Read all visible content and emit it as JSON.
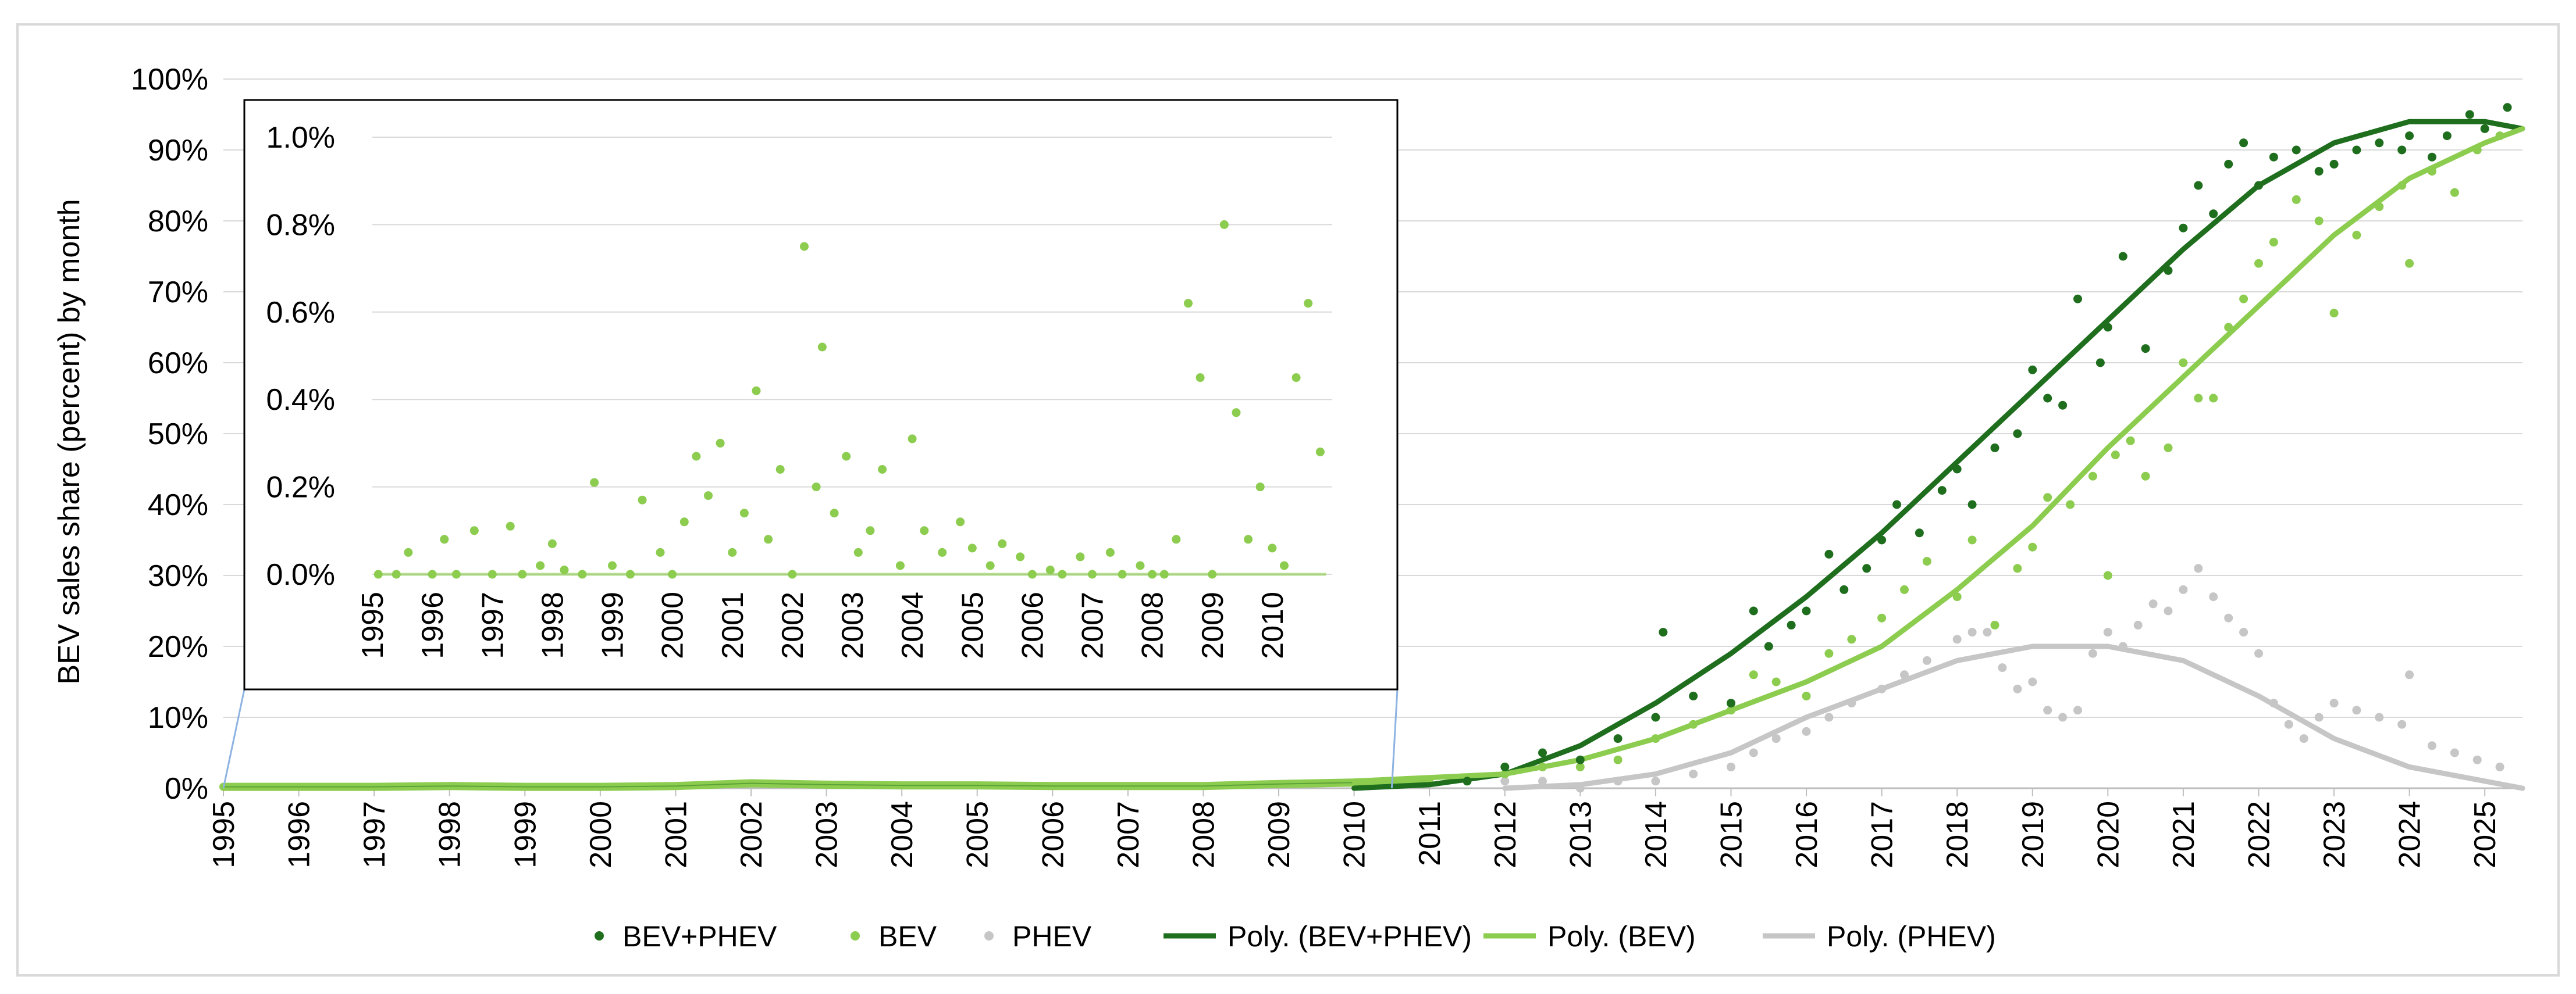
{
  "chart_data": [
    {
      "type": "scatter",
      "ylabel": "BEV sales share (percent) by month",
      "ylim": [
        0,
        100
      ],
      "yticks": [
        "0%",
        "10%",
        "20%",
        "30%",
        "40%",
        "50%",
        "60%",
        "70%",
        "80%",
        "90%",
        "100%"
      ],
      "xlim": [
        1995,
        2025.5
      ],
      "xticks": [
        "1995",
        "1996",
        "1997",
        "1998",
        "1999",
        "2000",
        "2001",
        "2002",
        "2003",
        "2004",
        "2005",
        "2006",
        "2007",
        "2008",
        "2009",
        "2010",
        "2011",
        "2012",
        "2013",
        "2014",
        "2015",
        "2016",
        "2017",
        "2018",
        "2019",
        "2020",
        "2021",
        "2022",
        "2023",
        "2024",
        "2025"
      ],
      "grid": true,
      "legend_position": "bottom",
      "legend": [
        {
          "label": "BEV+PHEV",
          "kind": "marker",
          "color": "#1e6e1e"
        },
        {
          "label": "BEV",
          "kind": "marker",
          "color": "#8ccc4e"
        },
        {
          "label": "PHEV",
          "kind": "marker",
          "color": "#c6c6c6"
        },
        {
          "label": "Poly. (BEV+PHEV)",
          "kind": "line",
          "color": "#1e6e1e"
        },
        {
          "label": "Poly. (BEV)",
          "kind": "line",
          "color": "#8ccc4e"
        },
        {
          "label": "Poly. (PHEV)",
          "kind": "line",
          "color": "#c6c6c6"
        }
      ],
      "series": [
        {
          "name": "BEV+PHEV",
          "color": "#1e6e1e",
          "x": [
            2011.5,
            2012.0,
            2012.5,
            2013.0,
            2013.5,
            2014.0,
            2014.1,
            2014.5,
            2015.0,
            2015.3,
            2015.5,
            2015.8,
            2016.0,
            2016.3,
            2016.5,
            2016.8,
            2017.0,
            2017.2,
            2017.5,
            2017.8,
            2018.0,
            2018.2,
            2018.5,
            2018.8,
            2019.0,
            2019.2,
            2019.4,
            2019.6,
            2019.9,
            2020.0,
            2020.2,
            2020.5,
            2020.8,
            2021.0,
            2021.2,
            2021.4,
            2021.6,
            2021.8,
            2022.0,
            2022.2,
            2022.5,
            2022.8,
            2023.0,
            2023.3,
            2023.6,
            2023.9,
            2024.0,
            2024.3,
            2024.5,
            2024.8,
            2025.0,
            2025.3
          ],
          "y": [
            1,
            3,
            5,
            4,
            7,
            10,
            22,
            13,
            12,
            25,
            20,
            23,
            25,
            33,
            28,
            31,
            35,
            40,
            36,
            42,
            45,
            40,
            48,
            50,
            59,
            55,
            54,
            69,
            60,
            65,
            75,
            62,
            73,
            79,
            85,
            81,
            88,
            91,
            85,
            89,
            90,
            87,
            88,
            90,
            91,
            90,
            92,
            89,
            92,
            95,
            93,
            96
          ]
        },
        {
          "name": "BEV",
          "color": "#8ccc4e",
          "x": [
            2011.5,
            2012.0,
            2012.5,
            2013.0,
            2013.5,
            2014.0,
            2014.5,
            2015.0,
            2015.3,
            2015.6,
            2016.0,
            2016.3,
            2016.6,
            2017.0,
            2017.3,
            2017.6,
            2018.0,
            2018.2,
            2018.5,
            2018.8,
            2019.0,
            2019.2,
            2019.5,
            2019.8,
            2020.0,
            2020.1,
            2020.3,
            2020.5,
            2020.8,
            2021.0,
            2021.2,
            2021.4,
            2021.6,
            2021.8,
            2022.0,
            2022.2,
            2022.5,
            2022.8,
            2023.0,
            2023.3,
            2023.6,
            2023.9,
            2024.0,
            2024.3,
            2024.6,
            2024.9,
            2025.2
          ],
          "y": [
            1,
            2,
            3,
            3,
            4,
            7,
            9,
            11,
            16,
            15,
            13,
            19,
            21,
            24,
            28,
            32,
            27,
            35,
            23,
            31,
            34,
            41,
            40,
            44,
            30,
            47,
            49,
            44,
            48,
            60,
            55,
            55,
            65,
            69,
            74,
            77,
            83,
            80,
            67,
            78,
            82,
            85,
            74,
            87,
            84,
            90,
            92
          ]
        },
        {
          "name": "PHEV",
          "color": "#c6c6c6",
          "x": [
            2012.0,
            2012.5,
            2013.0,
            2013.5,
            2014.0,
            2014.5,
            2015.0,
            2015.3,
            2015.6,
            2016.0,
            2016.3,
            2016.6,
            2017.0,
            2017.3,
            2017.6,
            2018.0,
            2018.2,
            2018.4,
            2018.6,
            2018.8,
            2019.0,
            2019.2,
            2019.4,
            2019.6,
            2019.8,
            2020.0,
            2020.2,
            2020.4,
            2020.6,
            2020.8,
            2021.0,
            2021.2,
            2021.4,
            2021.6,
            2021.8,
            2022.0,
            2022.2,
            2022.4,
            2022.6,
            2022.8,
            2023.0,
            2023.3,
            2023.6,
            2023.9,
            2024.0,
            2024.3,
            2024.6,
            2024.9,
            2025.2
          ],
          "y": [
            1,
            1,
            0,
            1,
            1,
            2,
            3,
            5,
            7,
            8,
            10,
            12,
            14,
            16,
            18,
            21,
            22,
            22,
            17,
            14,
            15,
            11,
            10,
            11,
            19,
            22,
            20,
            23,
            26,
            25,
            28,
            31,
            27,
            24,
            22,
            19,
            12,
            9,
            7,
            10,
            12,
            11,
            10,
            9,
            16,
            6,
            5,
            4,
            3
          ]
        }
      ],
      "trendlines": [
        {
          "name": "Poly. (BEV+PHEV)",
          "color": "#1e6e1e",
          "x": [
            2010,
            2011,
            2012,
            2013,
            2014,
            2015,
            2016,
            2017,
            2018,
            2019,
            2020,
            2021,
            2022,
            2023,
            2024,
            2025,
            2025.5
          ],
          "y": [
            0,
            0.5,
            2,
            6,
            12,
            19,
            27,
            36,
            46,
            56,
            66,
            76,
            85,
            91,
            94,
            94,
            93
          ]
        },
        {
          "name": "Poly. (BEV)",
          "color": "#8ccc4e",
          "x": [
            2010,
            2011,
            2012,
            2013,
            2014,
            2015,
            2016,
            2017,
            2018,
            2019,
            2020,
            2021,
            2022,
            2023,
            2024,
            2025,
            2025.5
          ],
          "y": [
            1,
            1.5,
            2,
            4,
            7,
            11,
            15,
            20,
            28,
            37,
            48,
            58,
            68,
            78,
            86,
            91,
            93
          ]
        },
        {
          "name": "Poly. (PHEV)",
          "color": "#c6c6c6",
          "x": [
            2012,
            2013,
            2014,
            2015,
            2016,
            2017,
            2018,
            2019,
            2020,
            2021,
            2022,
            2023,
            2024,
            2025,
            2025.5
          ],
          "y": [
            0,
            0.5,
            2,
            5,
            10,
            14,
            18,
            20,
            20,
            18,
            13,
            7,
            3,
            1,
            0
          ]
        }
      ],
      "pre2011_bev": {
        "x": [
          1995,
          1996,
          1997,
          1998,
          1999,
          2000,
          2001,
          2002,
          2003,
          2004,
          2005,
          2006,
          2007,
          2008,
          2009,
          2010,
          2010.5,
          2011
        ],
        "y": [
          0.2,
          0.2,
          0.2,
          0.3,
          0.2,
          0.2,
          0.3,
          0.7,
          0.5,
          0.4,
          0.4,
          0.3,
          0.3,
          0.3,
          0.6,
          0.8,
          1.0,
          1.2
        ]
      }
    },
    {
      "type": "scatter",
      "role": "inset",
      "ylim": [
        0,
        1.0
      ],
      "yticks": [
        "0.0%",
        "0.2%",
        "0.4%",
        "0.6%",
        "0.8%",
        "1.0%"
      ],
      "xlim": [
        1995,
        2011
      ],
      "xticks": [
        "1995",
        "1996",
        "1997",
        "1998",
        "1999",
        "2000",
        "2001",
        "2002",
        "2003",
        "2004",
        "2005",
        "2006",
        "2007",
        "2008",
        "2009",
        "2010"
      ],
      "grid": true,
      "series": [
        {
          "name": "BEV",
          "color": "#8ccc4e",
          "x": [
            1995.1,
            1995.4,
            1995.6,
            1996.0,
            1996.2,
            1996.4,
            1996.7,
            1997.0,
            1997.3,
            1997.5,
            1997.8,
            1998.0,
            1998.2,
            1998.5,
            1998.7,
            1999.0,
            1999.3,
            1999.5,
            1999.8,
            2000.0,
            2000.2,
            2000.4,
            2000.6,
            2000.8,
            2001.0,
            2001.2,
            2001.4,
            2001.6,
            2001.8,
            2002.0,
            2002.2,
            2002.4,
            2002.5,
            2002.7,
            2002.9,
            2003.1,
            2003.3,
            2003.5,
            2003.8,
            2004.0,
            2004.2,
            2004.5,
            2004.8,
            2005.0,
            2005.3,
            2005.5,
            2005.8,
            2006.0,
            2006.3,
            2006.5,
            2006.8,
            2007.0,
            2007.3,
            2007.5,
            2007.8,
            2008.0,
            2008.2,
            2008.4,
            2008.6,
            2008.8,
            2009.0,
            2009.2,
            2009.4,
            2009.6,
            2009.8,
            2010.0,
            2010.2,
            2010.4,
            2010.6,
            2010.8
          ],
          "y": [
            0.0,
            0.0,
            0.05,
            0.0,
            0.08,
            0.0,
            0.1,
            0.0,
            0.11,
            0.0,
            0.02,
            0.07,
            0.01,
            0.0,
            0.21,
            0.02,
            0.0,
            0.17,
            0.05,
            0.0,
            0.12,
            0.27,
            0.18,
            0.3,
            0.05,
            0.14,
            0.42,
            0.08,
            0.24,
            0.0,
            0.75,
            0.2,
            0.52,
            0.14,
            0.27,
            0.05,
            0.1,
            0.24,
            0.02,
            0.31,
            0.1,
            0.05,
            0.12,
            0.06,
            0.02,
            0.07,
            0.04,
            0.0,
            0.01,
            0.0,
            0.04,
            0.0,
            0.05,
            0.0,
            0.02,
            0.0,
            0.0,
            0.08,
            0.62,
            0.45,
            0.0,
            0.8,
            0.37,
            0.08,
            0.2,
            0.06,
            0.02,
            0.45,
            0.62,
            0.28
          ]
        }
      ]
    }
  ]
}
